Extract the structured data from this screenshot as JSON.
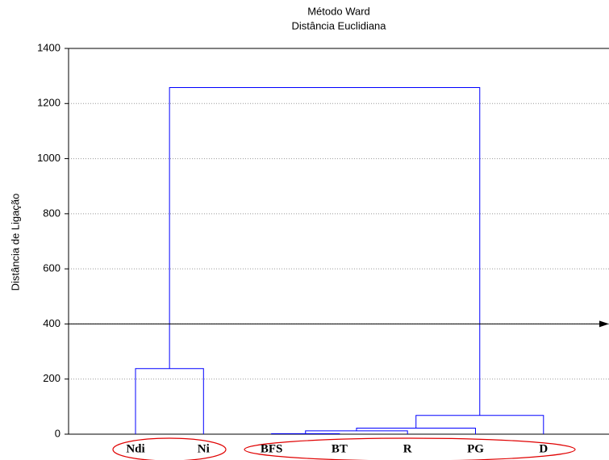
{
  "chart_data": {
    "type": "dendrogram",
    "title": "Método Ward",
    "subtitle": "Distância Euclidiana",
    "y_label": "Distância de Ligação",
    "leaves": [
      "Ndi",
      "Ni",
      "BFS",
      "BT",
      "R",
      "PG",
      "D"
    ],
    "merges": [
      {
        "left": 0,
        "right": 1,
        "height": 238
      },
      {
        "left": 2,
        "right": 3,
        "height": 2
      },
      {
        "left": 8,
        "right": 4,
        "height": 12
      },
      {
        "left": 9,
        "right": 5,
        "height": 22
      },
      {
        "left": 10,
        "right": 6,
        "height": 68
      },
      {
        "left": 7,
        "right": 11,
        "height": 1258
      }
    ],
    "color": "#0000ff",
    "cut_line": 400,
    "ylim": [
      0,
      1400
    ],
    "yticks": [
      0,
      200,
      400,
      600,
      800,
      1000,
      1200,
      1400
    ],
    "grid": true
  }
}
